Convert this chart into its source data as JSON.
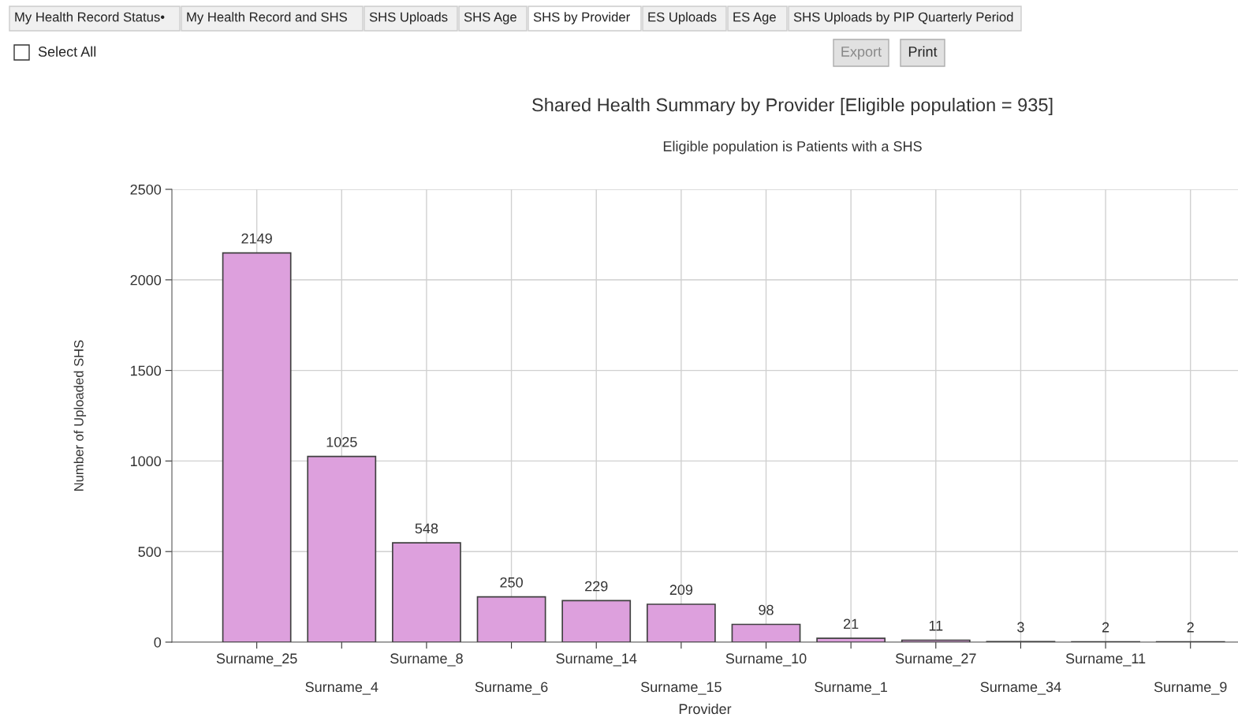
{
  "chart_data": {
    "type": "bar",
    "title": "Shared Health Summary by Provider [Eligible population = 935]",
    "subtitle": "Eligible population is Patients with a SHS",
    "xlabel": "Provider",
    "ylabel": "Number of Uploaded SHS",
    "categories": [
      "Surname_25",
      "Surname_4",
      "Surname_8",
      "Surname_6",
      "Surname_14",
      "Surname_15",
      "Surname_10",
      "Surname_1",
      "Surname_27",
      "Surname_34",
      "Surname_11",
      "Surname_9"
    ],
    "values": [
      2149,
      1025,
      548,
      250,
      229,
      209,
      98,
      21,
      11,
      3,
      2,
      2
    ],
    "color": "#dda0dd",
    "ylim": [
      0,
      2500
    ],
    "yticks": [
      0,
      500,
      1000,
      1500,
      2000,
      2500
    ],
    "grid": true,
    "data_labels": true,
    "annotations": [
      "My Health Record Status•",
      "My Health Record and SHS",
      "SHS Uploads",
      "SHS Age",
      "SHS by Provider",
      "ES Uploads",
      "ES Age",
      "SHS Uploads by PIP Quarterly Period",
      "Select All",
      "Export",
      "Print"
    ]
  }
}
